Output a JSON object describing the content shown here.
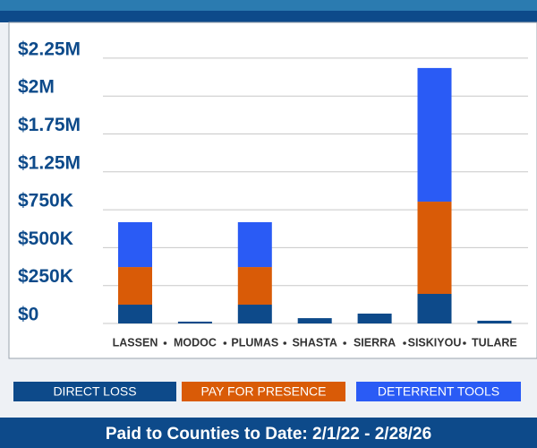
{
  "chart_data": {
    "type": "stacked-bar",
    "footer": "Paid to Counties to Date: 2/1/22 - 2/28/26",
    "categories": [
      "LASSEN",
      "MODOC",
      "PLUMAS",
      "SHASTA",
      "SIERRA",
      "SISKIYOU",
      "TULARE"
    ],
    "series": [
      {
        "name": "DIRECT LOSS",
        "color": "#0d4a8a",
        "values": [
          124000,
          12000,
          124000,
          35000,
          65000,
          195000,
          18000
        ]
      },
      {
        "name": "PAY FOR PRESENCE",
        "color": "#d95b07",
        "values": [
          248000,
          0,
          248000,
          0,
          0,
          662000,
          0
        ]
      },
      {
        "name": "DETERRENT TOOLS",
        "color": "#2a5bf5",
        "values": [
          296000,
          0,
          296000,
          0,
          0,
          1328000,
          0
        ]
      }
    ],
    "ylim": [
      0,
      2250000
    ],
    "yticks": [
      {
        "value": 0,
        "label": "$0"
      },
      {
        "value": 250000,
        "label": "$250K"
      },
      {
        "value": 500000,
        "label": "$500K"
      },
      {
        "value": 750000,
        "label": "$750K"
      },
      {
        "value": 1250000,
        "label": "$1.25M"
      },
      {
        "value": 1750000,
        "label": "$1.75M"
      },
      {
        "value": 2000000,
        "label": "$2M"
      },
      {
        "value": 2250000,
        "label": "$2.25M"
      }
    ],
    "grid": true
  }
}
